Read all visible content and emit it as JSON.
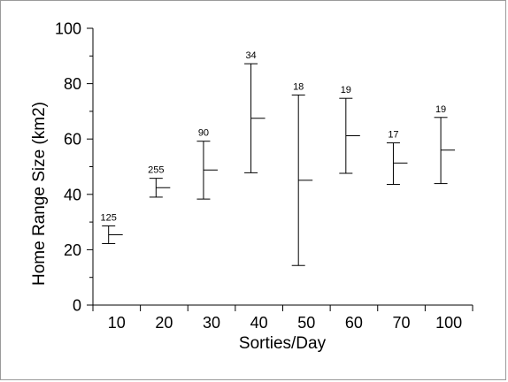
{
  "chart_data": {
    "type": "range_bar",
    "categories": [
      "10",
      "20",
      "30",
      "40",
      "50",
      "60",
      "70",
      "100"
    ],
    "series": [
      {
        "low": [
          22.2,
          39.0,
          38.3,
          47.8,
          14.3,
          47.6,
          43.6,
          43.9
        ],
        "high": [
          28.6,
          45.8,
          59.2,
          87.2,
          75.9,
          74.7,
          58.6,
          67.8
        ],
        "mean": [
          25.4,
          42.4,
          48.8,
          67.5,
          45.1,
          61.2,
          51.3,
          56.0
        ],
        "n": [
          "125",
          "255",
          "90",
          "34",
          "18",
          "19",
          "17",
          "19"
        ]
      }
    ],
    "xlabel": "Sorties/Day",
    "ylabel": "Home Range Size (km2)",
    "ylim": [
      0,
      100
    ],
    "yticks": [
      "0",
      "20",
      "40",
      "60",
      "80",
      "100"
    ],
    "grid": false,
    "legend": "none"
  }
}
